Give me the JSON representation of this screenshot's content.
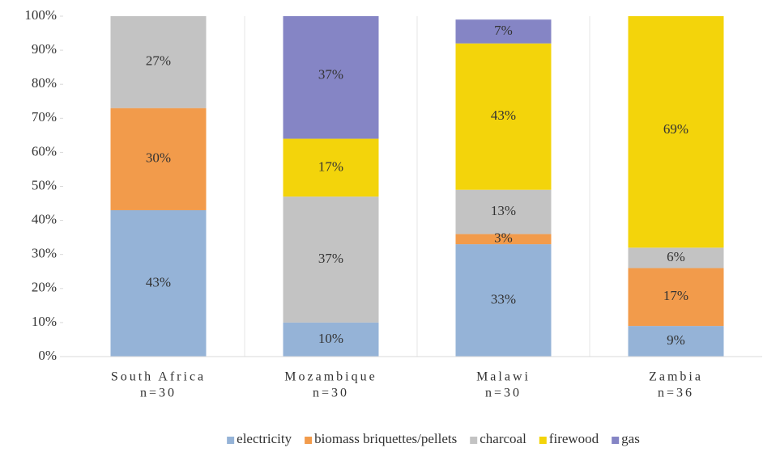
{
  "chart_data": {
    "type": "stacked_bar",
    "categories": [
      "South Africa",
      "Mozambique",
      "Malawi",
      "Zambia"
    ],
    "category_sublabels": [
      "n=30",
      "n=30",
      "n=30",
      "n=36"
    ],
    "series": [
      {
        "name": "electricity",
        "color": "#95b3d7",
        "values": [
          43,
          10,
          33,
          9
        ],
        "value_labels": [
          "43%",
          "10%",
          "33%",
          "9%"
        ]
      },
      {
        "name": "biomass briquettes/pellets",
        "color": "#f29b4b",
        "values": [
          30,
          null,
          3,
          17
        ],
        "value_labels": [
          "30%",
          null,
          "3%",
          "17%"
        ]
      },
      {
        "name": "charcoal",
        "color": "#c3c3c3",
        "values": [
          27,
          37,
          13,
          6
        ],
        "value_labels": [
          "27%",
          "37%",
          "13%",
          "6%"
        ]
      },
      {
        "name": "firewood",
        "color": "#f3d40b",
        "values": [
          null,
          17,
          43,
          69
        ],
        "value_labels": [
          null,
          "17%",
          "43%",
          "69%"
        ]
      },
      {
        "name": "gas",
        "color": "#8585c5",
        "values": [
          null,
          37,
          7,
          null
        ],
        "value_labels": [
          null,
          "37%",
          "7%",
          null
        ]
      }
    ],
    "ylim": [
      0,
      100
    ],
    "yticks": [
      {
        "value": 0,
        "label": "0%"
      },
      {
        "value": 10,
        "label": "10%"
      },
      {
        "value": 20,
        "label": "20%"
      },
      {
        "value": 30,
        "label": "30%"
      },
      {
        "value": 40,
        "label": "40%"
      },
      {
        "value": 50,
        "label": "50%"
      },
      {
        "value": 60,
        "label": "60%"
      },
      {
        "value": 70,
        "label": "70%"
      },
      {
        "value": 80,
        "label": "80%"
      },
      {
        "value": 90,
        "label": "90%"
      },
      {
        "value": 100,
        "label": "100%"
      }
    ],
    "legend": "bottom"
  }
}
